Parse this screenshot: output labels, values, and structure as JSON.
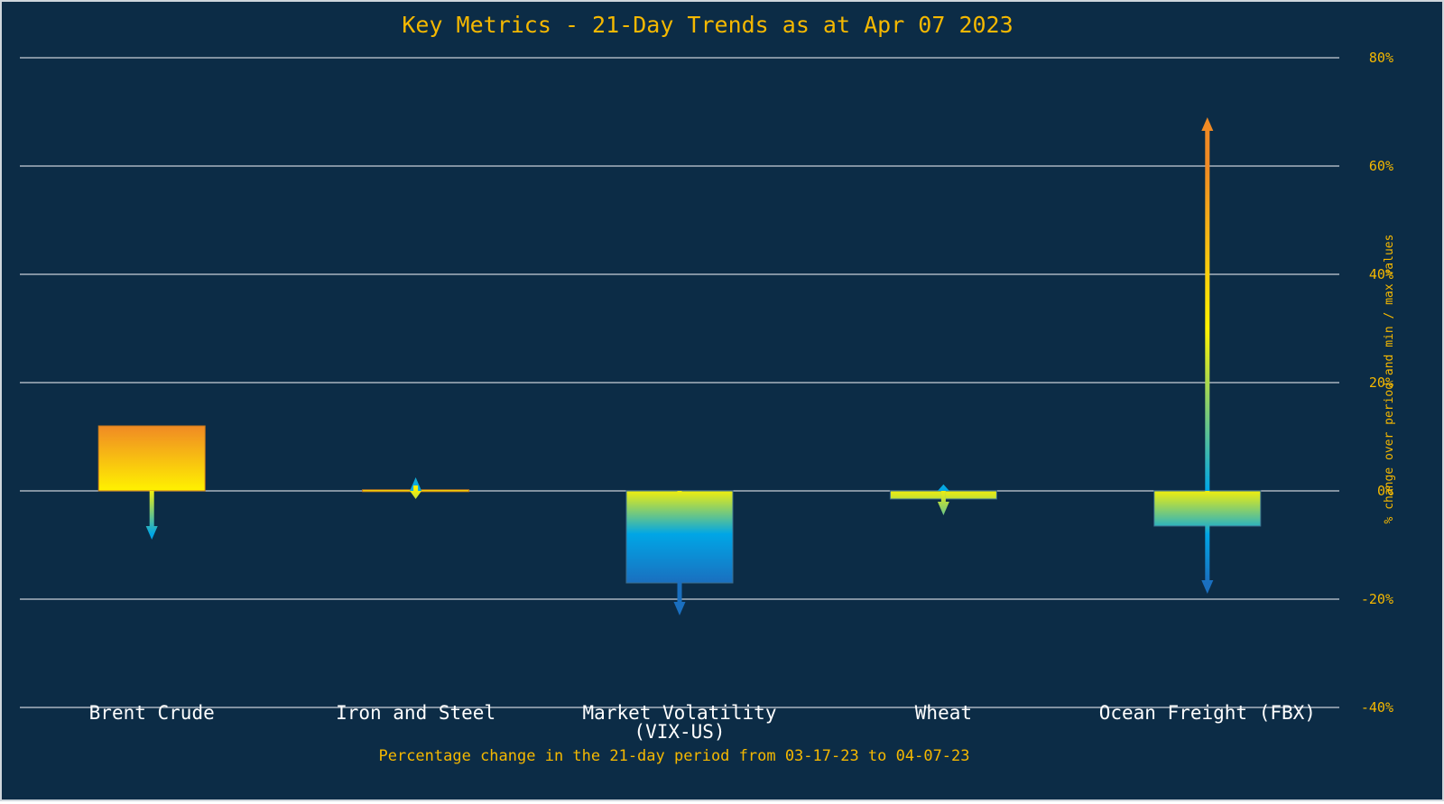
{
  "chart_data": {
    "type": "bar",
    "title": "Key Metrics - 21-Day Trends as at Apr 07 2023",
    "xlabel": "Percentage change in the 21-day period from 03-17-23 to 04-07-23",
    "ylabel": "% change over period and min / max values",
    "ylim": [
      -40,
      80
    ],
    "yticks": [
      80,
      60,
      40,
      20,
      0,
      -20,
      -40
    ],
    "ytick_labels": [
      "80%",
      "60%",
      "40%",
      "20%",
      "0%",
      "-20%",
      "-40%"
    ],
    "grid": true,
    "categories": [
      [
        "Brent Crude"
      ],
      [
        "Iron and Steel"
      ],
      [
        "Market Volatility",
        "(VIX-US)"
      ],
      [
        "Wheat"
      ],
      [
        "Ocean Freight (FBX)"
      ]
    ],
    "values": [
      12,
      0.2,
      -17,
      -1.5,
      -6.5
    ],
    "min_values": [
      -9,
      -1.5,
      -23,
      -4.5,
      -19
    ],
    "max_values": [
      0,
      2.5,
      0,
      1.2,
      69
    ]
  },
  "colors": {
    "background": "#0c2c46",
    "grid": "#c8d0d8",
    "text_accent": "#f5b800",
    "category_text": "#ffffff",
    "gradient_high": "#f08a24",
    "gradient_mid": "#fff200",
    "gradient_low": "#00a6e6",
    "gradient_deep": "#1a6fbf"
  }
}
